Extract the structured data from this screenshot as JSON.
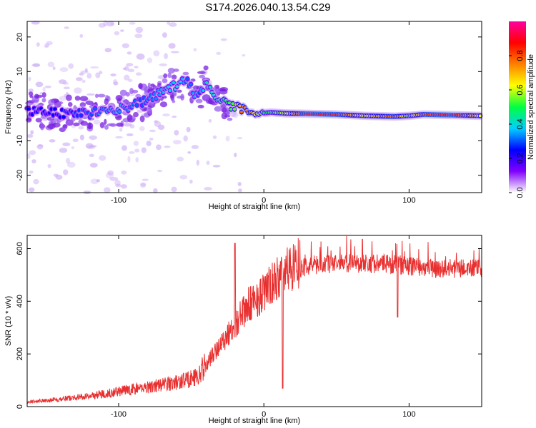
{
  "title": "S174.2026.040.13.54.C29",
  "chart_data": [
    {
      "type": "heatmap",
      "xlabel": "Height of straight line (km)",
      "ylabel": "Frequency (Hz)",
      "xlim": [
        -163,
        150
      ],
      "ylim": [
        -25,
        24.5
      ],
      "xticks": [
        -100,
        0,
        100
      ],
      "yticks": [
        -20,
        -10,
        0,
        10,
        20
      ],
      "grid": false,
      "colorbar": {
        "label": "Normalized spectral amplitude",
        "range": [
          0,
          1
        ],
        "ticks": [
          0.0,
          0.2,
          0.4,
          0.6,
          0.8
        ],
        "colors": [
          "#ffffff",
          "#8000ff",
          "#0000ff",
          "#00d0ff",
          "#00ff40",
          "#ffff00",
          "#ff8000",
          "#ff0000",
          "#ff00a0"
        ]
      },
      "ridge": {
        "x": [
          -163,
          -140,
          -120,
          -100,
          -85,
          -70,
          -60,
          -52,
          -48,
          -44,
          -40,
          -35,
          -30,
          -25,
          -20,
          -15,
          -10,
          -5,
          0,
          5,
          15,
          30,
          50,
          70,
          90,
          100,
          110,
          130,
          150
        ],
        "freq": [
          -1,
          -2,
          -2,
          -1,
          1,
          4,
          6,
          8,
          2,
          4,
          7,
          3,
          2,
          0.5,
          -0.5,
          -1,
          -1.5,
          -1.5,
          -2,
          -1.8,
          -2.1,
          -2.2,
          -2.4,
          -2.8,
          -3.0,
          -2.8,
          -2.4,
          -2.6,
          -2.8
        ],
        "amp": [
          0.25,
          0.25,
          0.3,
          0.35,
          0.3,
          0.35,
          0.4,
          0.3,
          0.35,
          0.3,
          0.45,
          0.4,
          0.45,
          0.5,
          0.55,
          0.8,
          0.75,
          0.6,
          0.5,
          0.5,
          0.6,
          0.9,
          0.85,
          0.6,
          0.8,
          0.5,
          0.8,
          0.9,
          0.6
        ]
      }
    },
    {
      "type": "line",
      "xlabel": "Height of straight line (km)",
      "ylabel": "SNR (10 * v/v)",
      "xlim": [
        -163,
        150
      ],
      "ylim": [
        0,
        650
      ],
      "xticks": [
        -100,
        0,
        100
      ],
      "yticks": [
        0,
        200,
        400,
        600
      ],
      "grid": false,
      "series": [
        {
          "name": "SNR",
          "color": "#e83030",
          "x": [
            -163,
            -140,
            -120,
            -100,
            -80,
            -60,
            -45,
            -38,
            -30,
            -24,
            -20,
            -10,
            0,
            10,
            20,
            30,
            50,
            70,
            90,
            100,
            120,
            150
          ],
          "y": [
            15,
            25,
            35,
            50,
            65,
            80,
            100,
            160,
            220,
            260,
            290,
            360,
            400,
            450,
            500,
            520,
            530,
            530,
            525,
            520,
            510,
            510
          ],
          "spikes": [
            {
              "x": -20,
              "y": 620
            },
            {
              "x": 13,
              "y": 70
            },
            {
              "x": 92,
              "y": 340
            }
          ]
        }
      ]
    }
  ]
}
